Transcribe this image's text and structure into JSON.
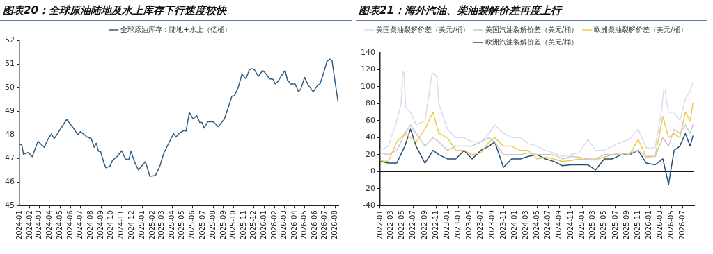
{
  "chart_data": [
    {
      "type": "line",
      "title": "图表20：全球原油陆地及水上库存下行速度较快",
      "legend": "top",
      "grid": false,
      "xlim": [
        "2024-01-01",
        "2026-08-10"
      ],
      "ylim": [
        45,
        52
      ],
      "yticks": [
        45,
        46,
        47,
        48,
        49,
        50,
        51,
        52
      ],
      "xticks": [
        "2024-01",
        "2024-02",
        "2024-03",
        "2024-04",
        "2024-05",
        "2024-06",
        "2024-07",
        "2024-08",
        "2024-09",
        "2024-10",
        "2024-11",
        "2024-12",
        "2025-01",
        "2025-02",
        "2025-03",
        "2025-04",
        "2025-05",
        "2025-06",
        "2025-07",
        "2025-08",
        "2025-09",
        "2025-10",
        "2025-11",
        "2025-12",
        "2026-01",
        "2026-02",
        "2026-03",
        "2026-04",
        "2026-05",
        "2026-06",
        "2026-07",
        "2026-08"
      ],
      "x": [
        "2024-01-01",
        "2024-01-08",
        "2024-01-13",
        "2024-01-27",
        "2024-02-08",
        "2024-02-25",
        "2024-03-15",
        "2024-03-25",
        "2024-04-05",
        "2024-04-14",
        "2024-05-21",
        "2024-06-10",
        "2024-06-23",
        "2024-07-01",
        "2024-07-21",
        "2024-08-02",
        "2024-08-11",
        "2024-08-17",
        "2024-08-24",
        "2024-08-30",
        "2024-09-09",
        "2024-09-15",
        "2024-09-27",
        "2024-10-05",
        "2024-10-20",
        "2024-11-01",
        "2024-11-12",
        "2024-11-22",
        "2024-11-29",
        "2024-12-09",
        "2024-12-21",
        "2025-01-11",
        "2025-01-24",
        "2025-02-10",
        "2025-02-23",
        "2025-03-07",
        "2025-03-21",
        "2025-04-05",
        "2025-04-12",
        "2025-04-21",
        "2025-05-06",
        "2025-05-12",
        "2025-05-22",
        "2025-06-02",
        "2025-06-13",
        "2025-06-22",
        "2025-06-29",
        "2025-07-05",
        "2025-07-16",
        "2025-08-01",
        "2025-08-16",
        "2025-09-03",
        "2025-09-15",
        "2025-09-26",
        "2025-10-04",
        "2025-10-15",
        "2025-10-26",
        "2025-11-07",
        "2025-11-17",
        "2025-11-24",
        "2025-12-03",
        "2025-12-14",
        "2025-12-27",
        "2026-01-07",
        "2026-01-16",
        "2026-01-27",
        "2026-02-02",
        "2026-02-10",
        "2026-02-21",
        "2026-03-04",
        "2026-03-11",
        "2026-03-21",
        "2026-04-03",
        "2026-04-13",
        "2026-04-20",
        "2026-05-01",
        "2026-05-12",
        "2026-05-27",
        "2026-06-09",
        "2026-06-16",
        "2026-06-27",
        "2026-07-07",
        "2026-07-16",
        "2026-07-22",
        "2026-07-31",
        "2026-08-09"
      ],
      "series": [
        {
          "name": "全球原油库存：陆地+水上（亿桶）",
          "color": "#2f5d83",
          "values": [
            47.6,
            47.56,
            47.17,
            47.25,
            47.07,
            47.72,
            47.47,
            47.78,
            48.03,
            47.84,
            48.65,
            48.28,
            48.0,
            48.13,
            47.9,
            47.84,
            47.47,
            47.64,
            47.3,
            47.3,
            46.8,
            46.6,
            46.67,
            46.92,
            47.1,
            47.32,
            46.98,
            46.94,
            47.3,
            46.86,
            46.51,
            46.86,
            46.24,
            46.27,
            46.67,
            47.23,
            47.63,
            48.05,
            47.9,
            48.05,
            48.18,
            48.15,
            48.95,
            48.67,
            48.81,
            48.52,
            48.52,
            48.28,
            48.55,
            48.55,
            48.34,
            48.65,
            49.14,
            49.63,
            49.66,
            50.0,
            50.56,
            50.37,
            50.74,
            50.8,
            50.74,
            50.47,
            50.72,
            50.56,
            50.37,
            50.35,
            50.15,
            50.25,
            50.5,
            50.72,
            50.31,
            50.15,
            50.15,
            49.82,
            49.94,
            50.43,
            50.1,
            49.82,
            50.1,
            50.15,
            50.62,
            51.11,
            51.2,
            51.14,
            50.25,
            49.39
          ]
        }
      ]
    },
    {
      "type": "line",
      "title": "图表21：海外汽油、柴油裂解价差再度上行",
      "legend": "top",
      "grid": false,
      "ref_lines": [
        {
          "axis": "y",
          "value": 0,
          "color": "#111111"
        }
      ],
      "xlim": [
        "2022-01-01",
        "2026-09-01"
      ],
      "ylim": [
        -40,
        140
      ],
      "yticks": [
        -40,
        -20,
        0,
        20,
        40,
        60,
        80,
        100,
        120,
        140
      ],
      "xticks": [
        "2022-01",
        "2022-03",
        "2022-05",
        "2022-07",
        "2022-09",
        "2022-11",
        "2023-01",
        "2023-03",
        "2023-05",
        "2023-07",
        "2023-09",
        "2023-11",
        "2024-01",
        "2024-03",
        "2024-05",
        "2024-07",
        "2024-09",
        "2024-11",
        "2025-01",
        "2025-03",
        "2025-05",
        "2025-07",
        "2025-09",
        "2025-11",
        "2026-01",
        "2026-03",
        "2026-05",
        "2026-07"
      ],
      "x": [
        "2022-01-01",
        "2022-02-15",
        "2022-04-01",
        "2022-05-15",
        "2022-06-15",
        "2022-07-15",
        "2022-09-01",
        "2022-10-15",
        "2022-11-15",
        "2023-01-01",
        "2023-02-15",
        "2023-04-01",
        "2023-05-15",
        "2023-07-01",
        "2023-08-15",
        "2023-09-15",
        "2023-11-01",
        "2023-12-15",
        "2024-02-01",
        "2024-03-15",
        "2024-05-01",
        "2024-06-15",
        "2024-08-01",
        "2024-09-15",
        "2024-11-01",
        "2024-12-15",
        "2025-02-01",
        "2025-03-15",
        "2025-05-01",
        "2025-06-15",
        "2025-08-01",
        "2025-09-15",
        "2025-11-01",
        "2025-12-15",
        "2026-02-01",
        "2026-03-15",
        "2026-04-15",
        "2026-05-15",
        "2026-06-15",
        "2026-07-15",
        "2026-08-10",
        "2026-08-25"
      ],
      "series": [
        {
          "name": "美国柴油裂解价差（美元/桶）",
          "color": "#dcdaf0",
          "x": [
            "2022-01-01",
            "2022-02-15",
            "2022-04-01",
            "2022-04-25",
            "2022-05-03",
            "2022-05-10",
            "2022-05-20",
            "2022-06-15",
            "2022-07-15",
            "2022-09-01",
            "2022-10-10",
            "2022-10-25",
            "2022-11-05",
            "2022-11-15",
            "2023-01-01",
            "2023-02-15",
            "2023-04-01",
            "2023-05-15",
            "2023-07-01",
            "2023-08-15",
            "2023-09-15",
            "2023-11-01",
            "2023-12-15",
            "2024-02-01",
            "2024-03-15",
            "2024-05-01",
            "2024-06-15",
            "2024-08-01",
            "2024-09-15",
            "2024-11-01",
            "2024-12-15",
            "2025-02-01",
            "2025-03-15",
            "2025-05-01",
            "2025-06-15",
            "2025-08-01",
            "2025-09-15",
            "2025-11-01",
            "2025-12-15",
            "2026-02-01",
            "2026-03-10",
            "2026-03-20",
            "2026-03-27",
            "2026-04-03",
            "2026-04-15",
            "2026-05-15",
            "2026-06-15",
            "2026-07-15",
            "2026-08-10",
            "2026-08-25"
          ],
          "values": [
            25,
            30,
            60,
            80,
            118,
            116,
            75,
            70,
            55,
            60,
            116,
            115,
            110,
            80,
            50,
            40,
            40,
            35,
            35,
            45,
            55,
            45,
            40,
            40,
            33,
            30,
            25,
            22,
            18,
            20,
            22,
            38,
            25,
            25,
            30,
            35,
            38,
            50,
            28,
            28,
            75,
            97,
            96,
            85,
            70,
            70,
            60,
            85,
            95,
            105
          ]
        },
        {
          "name": "美国汽油裂解价差（美元/桶）",
          "color": "#c8c8c8",
          "values": [
            22,
            20,
            25,
            45,
            55,
            45,
            30,
            40,
            35,
            25,
            30,
            30,
            30,
            35,
            40,
            35,
            20,
            20,
            20,
            22,
            20,
            20,
            20,
            15,
            18,
            17,
            15,
            15,
            20,
            20,
            20,
            22,
            25,
            18,
            18,
            40,
            30,
            50,
            45,
            55,
            45,
            55
          ]
        },
        {
          "name": "欧洲柴油裂解价差（美元/桶）",
          "color": "#f2c94c",
          "values": [
            13,
            12,
            35,
            45,
            40,
            35,
            50,
            70,
            45,
            40,
            25,
            25,
            20,
            22,
            35,
            40,
            30,
            30,
            25,
            25,
            15,
            17,
            15,
            12,
            13,
            15,
            14,
            14,
            17,
            20,
            22,
            20,
            38,
            17,
            18,
            65,
            40,
            45,
            40,
            70,
            60,
            80
          ]
        },
        {
          "name": "欧洲汽油裂解价差（美元/桶）",
          "color": "#1f4e79",
          "values": [
            12,
            10,
            10,
            30,
            50,
            30,
            10,
            25,
            20,
            15,
            15,
            25,
            15,
            25,
            30,
            35,
            5,
            15,
            15,
            18,
            20,
            15,
            12,
            7,
            8,
            8,
            8,
            2,
            15,
            15,
            20,
            20,
            25,
            10,
            8,
            15,
            -15,
            25,
            30,
            45,
            30,
            42
          ]
        }
      ]
    }
  ]
}
